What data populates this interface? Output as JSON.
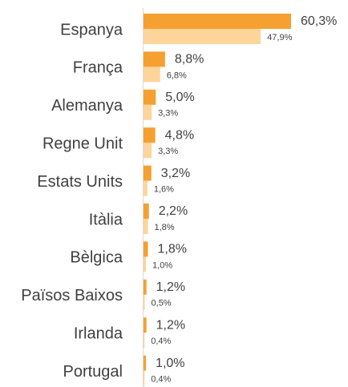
{
  "chart_data": {
    "type": "bar",
    "orientation": "horizontal",
    "categories": [
      "Espanya",
      "França",
      "Alemanya",
      "Regne Unit",
      "Estats Units",
      "Itàlia",
      "Bèlgica",
      "Països Baixos",
      "Irlanda",
      "Portugal"
    ],
    "series": [
      {
        "color": "#f5a030",
        "values": [
          60.3,
          8.8,
          5.0,
          4.8,
          3.2,
          2.2,
          1.8,
          1.2,
          1.2,
          1.0
        ],
        "value_labels": [
          "60,3%",
          "8,8%",
          "5,0%",
          "4,8%",
          "3,2%",
          "2,2%",
          "1,8%",
          "1,2%",
          "1,2%",
          "1,0%"
        ]
      },
      {
        "color": "#fdd49a",
        "values": [
          47.9,
          6.8,
          3.3,
          3.3,
          1.6,
          1.8,
          1.0,
          0.5,
          0.4,
          0.4
        ],
        "value_labels": [
          "47,9%",
          "6,8%",
          "3,3%",
          "3,3%",
          "1,6%",
          "1,8%",
          "1,0%",
          "0,5%",
          "0,4%",
          "0,4%"
        ]
      }
    ]
  }
}
